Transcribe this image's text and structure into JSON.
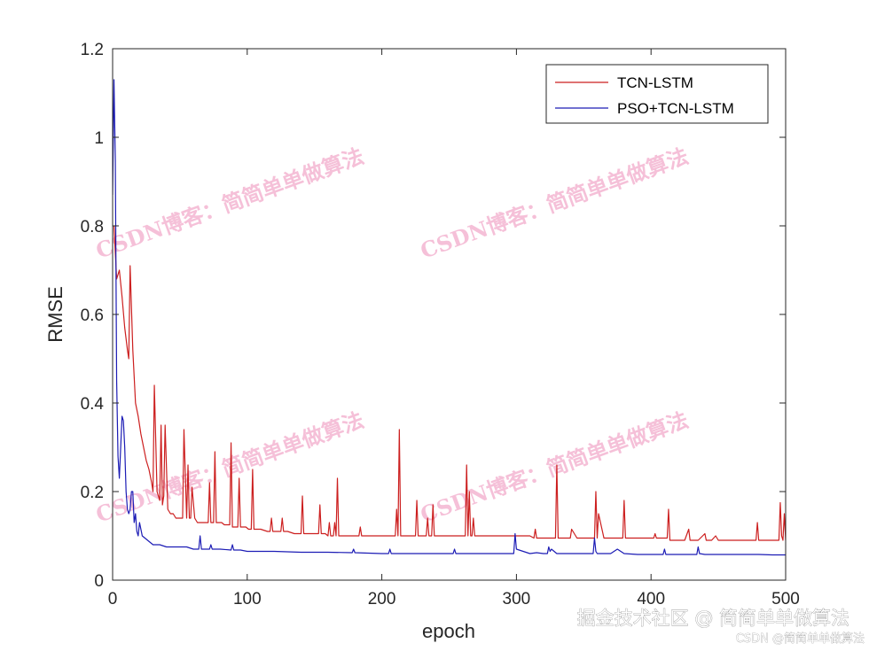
{
  "chart_data": {
    "type": "line",
    "xlabel": "epoch",
    "ylabel": "RMSE",
    "xlim": [
      0,
      500
    ],
    "ylim": [
      0,
      1.2
    ],
    "xticks": [
      0,
      100,
      200,
      300,
      400,
      500
    ],
    "yticks": [
      0,
      0.2,
      0.4,
      0.6,
      0.8,
      1,
      1.2
    ],
    "ytick_labels": [
      "0",
      "0.2",
      "0.4",
      "0.6",
      "0.8",
      "1",
      "1.2"
    ],
    "grid": false,
    "legend_position": "top-right",
    "series": [
      {
        "name": "TCN-LSTM",
        "color": "#cc1f1f",
        "x": [
          1,
          3,
          5,
          7,
          9,
          11,
          12,
          13,
          15,
          17,
          19,
          21,
          23,
          25,
          27,
          29,
          30,
          31,
          33,
          35,
          36,
          37,
          38,
          39,
          41,
          43,
          45,
          47,
          49,
          51,
          52,
          53,
          55,
          56,
          57,
          58,
          59,
          61,
          63,
          65,
          67,
          69,
          71,
          72,
          73,
          75,
          76,
          77,
          79,
          81,
          83,
          85,
          87,
          88,
          89,
          91,
          93,
          94,
          95,
          97,
          99,
          101,
          103,
          104,
          105,
          107,
          110,
          115,
          117,
          118,
          119,
          122,
          125,
          126,
          127,
          130,
          135,
          140,
          141,
          142,
          145,
          150,
          153,
          154,
          155,
          158,
          160,
          161,
          162,
          164,
          165,
          166,
          167,
          168,
          170,
          175,
          180,
          183,
          184,
          185,
          190,
          200,
          205,
          210,
          211,
          212,
          213,
          214,
          216,
          220,
          225,
          226,
          227,
          230,
          233,
          234,
          235,
          237,
          238,
          239,
          240,
          245,
          255,
          260,
          262,
          263,
          264,
          265,
          266,
          267,
          268,
          269,
          270,
          280,
          290,
          300,
          310,
          313,
          314,
          315,
          320,
          325,
          328,
          329,
          330,
          331,
          332,
          335,
          339,
          340,
          341,
          345,
          350,
          355,
          357,
          358,
          359,
          360,
          361,
          365,
          370,
          375,
          379,
          380,
          381,
          385,
          390,
          395,
          402,
          403,
          404,
          410,
          412,
          413,
          414,
          415,
          420,
          425,
          428,
          429,
          430,
          435,
          440,
          441,
          445,
          448,
          450,
          455,
          460,
          465,
          470,
          475,
          478,
          479,
          480,
          485,
          490,
          495,
          496,
          497,
          498,
          499,
          500
        ],
        "values": [
          0.8,
          0.68,
          0.7,
          0.64,
          0.57,
          0.52,
          0.5,
          0.71,
          0.52,
          0.4,
          0.37,
          0.33,
          0.3,
          0.27,
          0.25,
          0.22,
          0.2,
          0.44,
          0.2,
          0.18,
          0.35,
          0.17,
          0.19,
          0.35,
          0.16,
          0.15,
          0.15,
          0.14,
          0.14,
          0.14,
          0.14,
          0.34,
          0.14,
          0.26,
          0.14,
          0.14,
          0.21,
          0.14,
          0.13,
          0.13,
          0.13,
          0.13,
          0.13,
          0.22,
          0.13,
          0.13,
          0.29,
          0.13,
          0.13,
          0.13,
          0.125,
          0.125,
          0.125,
          0.31,
          0.12,
          0.12,
          0.12,
          0.23,
          0.12,
          0.12,
          0.12,
          0.115,
          0.115,
          0.25,
          0.115,
          0.115,
          0.115,
          0.11,
          0.11,
          0.14,
          0.11,
          0.11,
          0.11,
          0.14,
          0.11,
          0.11,
          0.105,
          0.105,
          0.19,
          0.105,
          0.105,
          0.105,
          0.105,
          0.17,
          0.105,
          0.105,
          0.1,
          0.13,
          0.1,
          0.1,
          0.13,
          0.1,
          0.23,
          0.1,
          0.1,
          0.1,
          0.1,
          0.1,
          0.12,
          0.1,
          0.1,
          0.1,
          0.1,
          0.1,
          0.16,
          0.1,
          0.34,
          0.1,
          0.1,
          0.1,
          0.1,
          0.18,
          0.1,
          0.1,
          0.1,
          0.14,
          0.1,
          0.1,
          0.17,
          0.1,
          0.1,
          0.1,
          0.1,
          0.1,
          0.1,
          0.26,
          0.1,
          0.2,
          0.1,
          0.1,
          0.14,
          0.1,
          0.1,
          0.1,
          0.1,
          0.1,
          0.1,
          0.095,
          0.115,
          0.095,
          0.095,
          0.095,
          0.095,
          0.095,
          0.26,
          0.095,
          0.095,
          0.095,
          0.095,
          0.095,
          0.115,
          0.095,
          0.095,
          0.095,
          0.095,
          0.095,
          0.2,
          0.095,
          0.15,
          0.095,
          0.095,
          0.095,
          0.095,
          0.18,
          0.095,
          0.095,
          0.095,
          0.095,
          0.095,
          0.105,
          0.095,
          0.095,
          0.095,
          0.16,
          0.09,
          0.09,
          0.09,
          0.09,
          0.115,
          0.09,
          0.09,
          0.09,
          0.105,
          0.09,
          0.09,
          0.1,
          0.09,
          0.09,
          0.09,
          0.09,
          0.09,
          0.09,
          0.09,
          0.13,
          0.09,
          0.09,
          0.09,
          0.09,
          0.175,
          0.1,
          0.09,
          0.15,
          0.09
        ]
      },
      {
        "name": "PSO+TCN-LSTM",
        "color": "#1c1cb5",
        "x": [
          0,
          1,
          2,
          3,
          4,
          5,
          6,
          7,
          8,
          9,
          10,
          11,
          12,
          13,
          14,
          15,
          16,
          17,
          18,
          19,
          20,
          22,
          24,
          26,
          28,
          30,
          35,
          40,
          45,
          50,
          55,
          60,
          64,
          65,
          66,
          70,
          72,
          73,
          74,
          80,
          88,
          89,
          90,
          95,
          100,
          110,
          120,
          140,
          160,
          178,
          179,
          180,
          200,
          205,
          206,
          207,
          230,
          250,
          253,
          254,
          255,
          280,
          297,
          298,
          299,
          300,
          305,
          310,
          315,
          320,
          323,
          324,
          325,
          326,
          330,
          340,
          350,
          357,
          358,
          359,
          360,
          370,
          375,
          380,
          390,
          400,
          405,
          409,
          410,
          411,
          420,
          430,
          434,
          435,
          436,
          440,
          450,
          460,
          470,
          480,
          490,
          500
        ],
        "values": [
          0.87,
          1.13,
          0.95,
          0.45,
          0.28,
          0.23,
          0.3,
          0.37,
          0.36,
          0.3,
          0.2,
          0.16,
          0.15,
          0.16,
          0.2,
          0.2,
          0.13,
          0.15,
          0.11,
          0.1,
          0.13,
          0.1,
          0.095,
          0.09,
          0.085,
          0.08,
          0.08,
          0.075,
          0.075,
          0.075,
          0.075,
          0.07,
          0.07,
          0.1,
          0.07,
          0.07,
          0.07,
          0.08,
          0.07,
          0.07,
          0.068,
          0.08,
          0.068,
          0.068,
          0.065,
          0.065,
          0.065,
          0.063,
          0.063,
          0.062,
          0.07,
          0.062,
          0.06,
          0.06,
          0.07,
          0.06,
          0.06,
          0.06,
          0.06,
          0.07,
          0.06,
          0.06,
          0.06,
          0.06,
          0.105,
          0.07,
          0.065,
          0.06,
          0.062,
          0.06,
          0.06,
          0.075,
          0.065,
          0.07,
          0.06,
          0.06,
          0.06,
          0.06,
          0.095,
          0.065,
          0.06,
          0.06,
          0.07,
          0.06,
          0.058,
          0.058,
          0.058,
          0.058,
          0.07,
          0.058,
          0.058,
          0.058,
          0.058,
          0.075,
          0.06,
          0.058,
          0.058,
          0.058,
          0.058,
          0.058,
          0.057,
          0.057
        ]
      }
    ]
  },
  "watermark": {
    "text": "CSDN博客：简简单单做算法"
  },
  "credit": {
    "main": "掘金技术社区 @ 简简单单做算法",
    "sub": "CSDN @简简单单做算法"
  }
}
